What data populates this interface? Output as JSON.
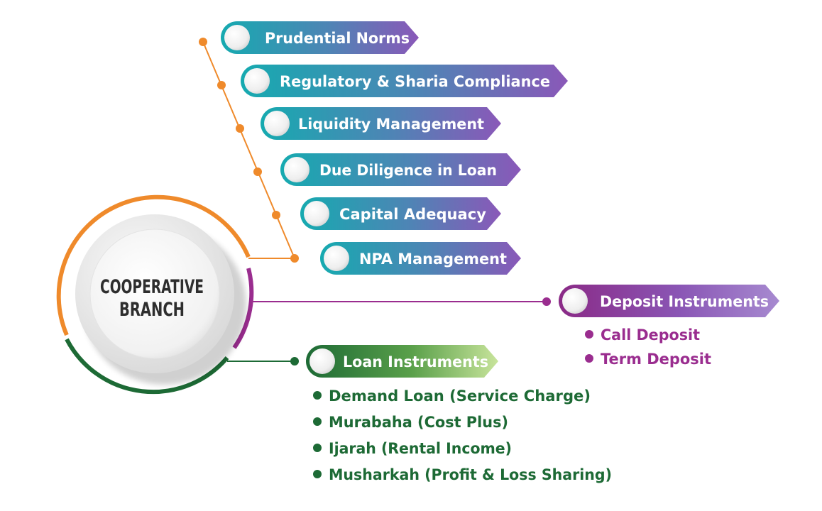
{
  "center": {
    "line1": "COOPERATIVE",
    "line2": "BRANCH"
  },
  "prudential_items": [
    "Prudential Norms",
    "Regulatory & Sharia Compliance",
    "Liquidity Management",
    "Due Diligence in Loan",
    "Capital Adequacy",
    "NPA Management"
  ],
  "deposit": {
    "title": "Deposit Instruments",
    "items": [
      "Call Deposit",
      "Term Deposit"
    ]
  },
  "loan": {
    "title": "Loan Instruments",
    "items": [
      "Demand Loan (Service Charge)",
      "Murabaha (Cost Plus)",
      "Ijarah (Rental Income)",
      "Musharkah (Profit & Loss Sharing)"
    ]
  },
  "colors": {
    "orange": "#ef8a2b",
    "purple": "#9a2d8f",
    "green": "#1d6a35",
    "teal": "#16aab0",
    "violet": "#8a58b8",
    "light_green": "#b9dc8a"
  }
}
